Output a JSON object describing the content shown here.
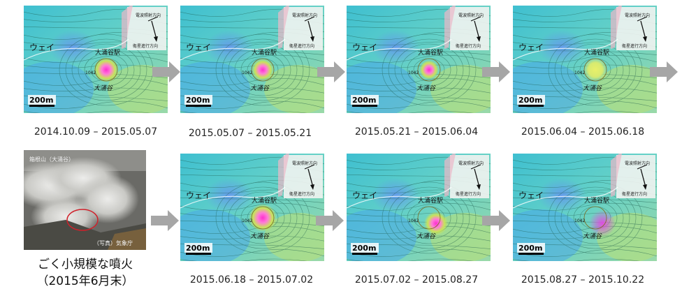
{
  "panels": [
    {
      "period": "2014.10.09 – 2015.05.07"
    },
    {
      "period": "2015.05.07 – 2015.05.21"
    },
    {
      "period": "2015.05.21 – 2015.06.04"
    },
    {
      "period": "2015.06.04 – 2015.06.18"
    },
    {
      "period": "2015.06.18 – 2015.07.02"
    },
    {
      "period": "2015.07.02 – 2015.08.27"
    },
    {
      "period": "2015.08.27 – 2015.10.22"
    }
  ],
  "map_labels": {
    "station": "大涌谷駅",
    "valley": "大涌谷",
    "ropeway": "ウェイ",
    "elevation": "1042",
    "scale": "200m",
    "radar_direction": "電波照射方向",
    "flight_direction": "衛星進行方向"
  },
  "photo": {
    "caption_line1": "ごく小規模な噴火",
    "caption_line2": "（2015年6月末）",
    "overlay_title": "箱根山（大涌谷）",
    "overlay_credit": "（写真）気象庁"
  },
  "colors": {
    "arrow": "#a6a6a6",
    "highlight_circle": "#d0202a"
  }
}
